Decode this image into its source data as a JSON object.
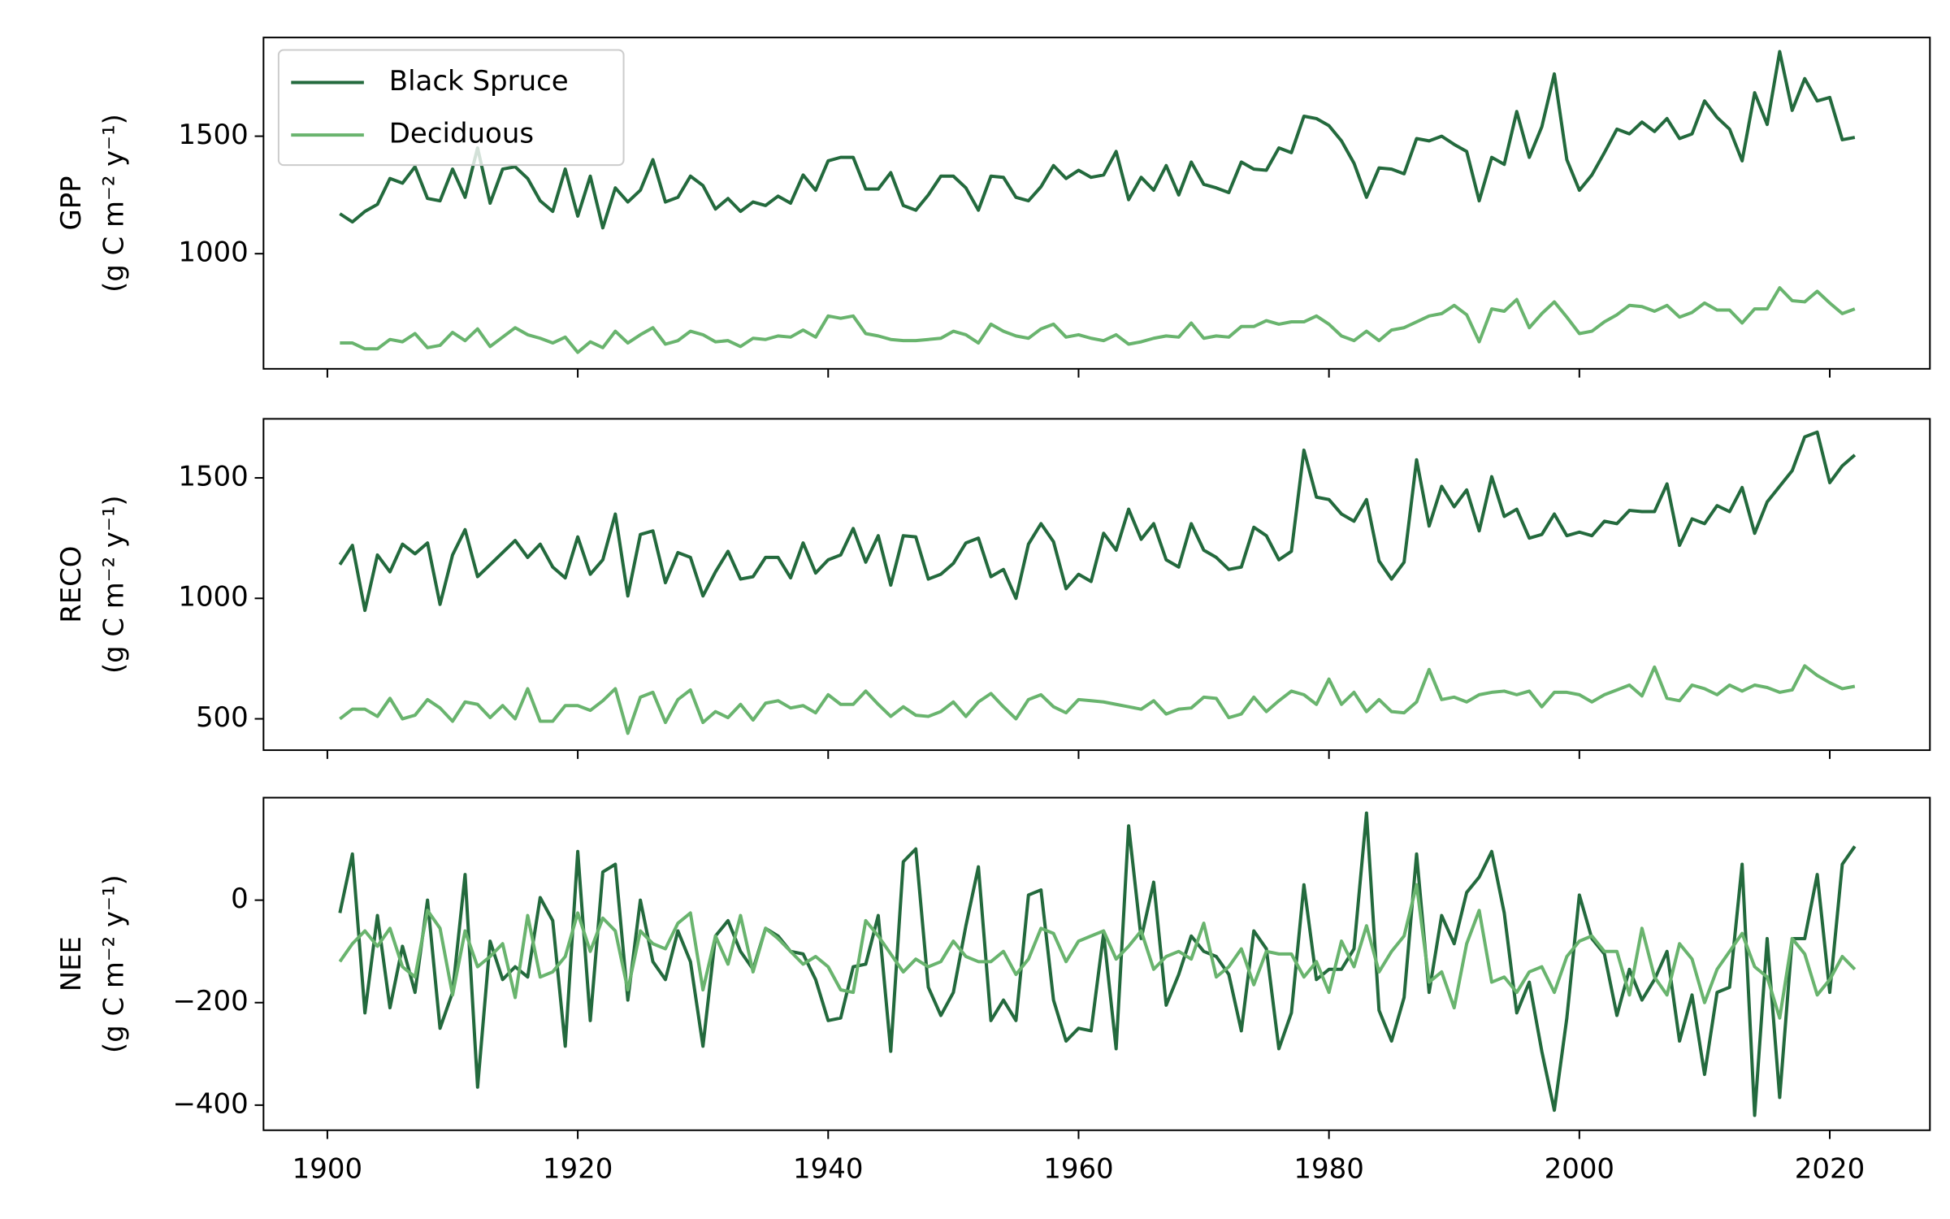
{
  "chart_data": [
    {
      "type": "line",
      "ylabel": [
        "GPP",
        "(g C m⁻² y⁻¹)"
      ],
      "legend": "upper left",
      "xlim": [
        1894.9,
        2028.0
      ],
      "ylim": [
        510,
        1920
      ],
      "yticks": [
        1000,
        1500
      ],
      "x": [
        1901,
        1902,
        1903,
        1904,
        1905,
        1906,
        1907,
        1908,
        1909,
        1910,
        1911,
        1912,
        1913,
        1914,
        1915,
        1916,
        1917,
        1918,
        1919,
        1920,
        1921,
        1922,
        1923,
        1924,
        1925,
        1926,
        1927,
        1928,
        1929,
        1930,
        1931,
        1932,
        1933,
        1934,
        1935,
        1936,
        1937,
        1938,
        1939,
        1940,
        1941,
        1942,
        1943,
        1944,
        1945,
        1946,
        1947,
        1948,
        1949,
        1950,
        1951,
        1952,
        1953,
        1954,
        1955,
        1956,
        1957,
        1958,
        1959,
        1960,
        1961,
        1962,
        1963,
        1964,
        1965,
        1966,
        1967,
        1968,
        1969,
        1970,
        1971,
        1972,
        1973,
        1974,
        1975,
        1976,
        1977,
        1978,
        1979,
        1980,
        1981,
        1982,
        1983,
        1984,
        1985,
        1986,
        1987,
        1988,
        1989,
        1990,
        1991,
        1992,
        1993,
        1994,
        1995,
        1996,
        1997,
        1998,
        1999,
        2000,
        2001,
        2002,
        2003,
        2004,
        2005,
        2006,
        2007,
        2008,
        2009,
        2010,
        2011,
        2012,
        2013,
        2014,
        2015,
        2016,
        2017,
        2018,
        2019,
        2020,
        2021,
        2022
      ],
      "series": [
        {
          "name": "Black Spruce",
          "color": "#236a3d",
          "values": [
            1170,
            1135,
            1180,
            1210,
            1320,
            1300,
            1370,
            1235,
            1225,
            1360,
            1240,
            1450,
            1215,
            1360,
            1370,
            1320,
            1225,
            1180,
            1360,
            1160,
            1330,
            1110,
            1280,
            1220,
            1270,
            1400,
            1220,
            1240,
            1330,
            1290,
            1190,
            1235,
            1180,
            1220,
            1205,
            1245,
            1215,
            1335,
            1270,
            1395,
            1410,
            1410,
            1275,
            1275,
            1345,
            1205,
            1185,
            1250,
            1330,
            1330,
            1280,
            1185,
            1330,
            1325,
            1240,
            1225,
            1285,
            1375,
            1320,
            1355,
            1325,
            1335,
            1435,
            1230,
            1325,
            1270,
            1375,
            1250,
            1390,
            1295,
            1280,
            1260,
            1390,
            1360,
            1355,
            1450,
            1430,
            1585,
            1575,
            1545,
            1480,
            1385,
            1240,
            1365,
            1360,
            1340,
            1490,
            1480,
            1500,
            1465,
            1435,
            1225,
            1410,
            1380,
            1605,
            1410,
            1540,
            1765,
            1400,
            1270,
            1335,
            1430,
            1530,
            1510,
            1560,
            1520,
            1575,
            1490,
            1510,
            1650,
            1580,
            1530,
            1395,
            1685,
            1550,
            1860,
            1610,
            1745,
            1650,
            1665,
            1485,
            1495
          ]
        },
        {
          "name": "Deciduous",
          "color": "#69b46e",
          "values": [
            620,
            620,
            595,
            595,
            635,
            625,
            660,
            600,
            610,
            665,
            630,
            680,
            605,
            645,
            685,
            655,
            640,
            620,
            645,
            580,
            625,
            600,
            670,
            620,
            655,
            685,
            615,
            630,
            670,
            655,
            625,
            630,
            605,
            640,
            635,
            650,
            645,
            675,
            645,
            735,
            725,
            735,
            660,
            650,
            635,
            630,
            630,
            635,
            640,
            670,
            655,
            620,
            700,
            670,
            650,
            640,
            680,
            700,
            645,
            655,
            640,
            630,
            655,
            615,
            625,
            640,
            650,
            645,
            705,
            640,
            650,
            645,
            690,
            690,
            715,
            700,
            710,
            710,
            735,
            700,
            650,
            630,
            670,
            630,
            675,
            685,
            710,
            735,
            745,
            780,
            740,
            625,
            765,
            755,
            805,
            685,
            745,
            795,
            730,
            660,
            670,
            710,
            740,
            780,
            775,
            755,
            780,
            730,
            750,
            790,
            760,
            760,
            705,
            765,
            765,
            855,
            800,
            795,
            840,
            790,
            745,
            765
          ]
        }
      ]
    },
    {
      "type": "line",
      "ylabel": [
        "RECO",
        "(g C m⁻² y⁻¹)"
      ],
      "xlim": [
        1894.9,
        2028.0
      ],
      "ylim": [
        370,
        1745
      ],
      "yticks": [
        500,
        1000,
        1500
      ],
      "x": [
        1901,
        1902,
        1903,
        1904,
        1905,
        1906,
        1907,
        1908,
        1909,
        1910,
        1911,
        1912,
        1913,
        1914,
        1915,
        1916,
        1917,
        1918,
        1919,
        1920,
        1921,
        1922,
        1923,
        1924,
        1925,
        1926,
        1927,
        1928,
        1929,
        1930,
        1931,
        1932,
        1933,
        1934,
        1935,
        1936,
        1937,
        1938,
        1939,
        1940,
        1941,
        1942,
        1943,
        1944,
        1945,
        1946,
        1947,
        1948,
        1949,
        1950,
        1951,
        1952,
        1953,
        1954,
        1955,
        1956,
        1957,
        1958,
        1959,
        1960,
        1961,
        1962,
        1963,
        1964,
        1965,
        1966,
        1967,
        1968,
        1969,
        1970,
        1971,
        1972,
        1973,
        1974,
        1975,
        1976,
        1977,
        1978,
        1979,
        1980,
        1981,
        1982,
        1983,
        1984,
        1985,
        1986,
        1987,
        1988,
        1989,
        1990,
        1991,
        1992,
        1993,
        1994,
        1995,
        1996,
        1997,
        1998,
        1999,
        2000,
        2001,
        2002,
        2003,
        2004,
        2005,
        2006,
        2007,
        2008,
        2009,
        2010,
        2011,
        2012,
        2013,
        2014,
        2015,
        2016,
        2017,
        2018,
        2019,
        2020,
        2021,
        2022
      ],
      "series": [
        {
          "name": "Black Spruce",
          "color": "#236a3d",
          "values": [
            1140,
            1220,
            950,
            1180,
            1110,
            1225,
            1185,
            1230,
            975,
            1180,
            1285,
            1090,
            1140,
            1190,
            1240,
            1170,
            1225,
            1130,
            1085,
            1255,
            1100,
            1160,
            1350,
            1010,
            1265,
            1280,
            1065,
            1190,
            1170,
            1010,
            1110,
            1195,
            1080,
            1090,
            1170,
            1170,
            1085,
            1230,
            1105,
            1160,
            1180,
            1290,
            1150,
            1260,
            1055,
            1260,
            1255,
            1080,
            1100,
            1145,
            1230,
            1250,
            1090,
            1120,
            1000,
            1225,
            1310,
            1235,
            1040,
            1100,
            1070,
            1270,
            1200,
            1370,
            1245,
            1310,
            1160,
            1130,
            1310,
            1200,
            1170,
            1120,
            1130,
            1295,
            1260,
            1160,
            1195,
            1615,
            1420,
            1410,
            1350,
            1320,
            1410,
            1155,
            1080,
            1150,
            1575,
            1300,
            1465,
            1380,
            1450,
            1280,
            1505,
            1340,
            1370,
            1250,
            1265,
            1350,
            1260,
            1275,
            1260,
            1320,
            1310,
            1365,
            1360,
            1360,
            1475,
            1220,
            1330,
            1310,
            1385,
            1360,
            1460,
            1270,
            1400,
            1465,
            1530,
            1670,
            1690,
            1480,
            1550,
            1595
          ]
        },
        {
          "name": "Deciduous",
          "color": "#69b46e",
          "values": [
            500,
            540,
            540,
            510,
            585,
            500,
            515,
            580,
            545,
            490,
            570,
            560,
            505,
            555,
            500,
            625,
            490,
            490,
            555,
            555,
            535,
            575,
            625,
            440,
            590,
            610,
            485,
            580,
            620,
            485,
            530,
            505,
            560,
            495,
            565,
            575,
            545,
            555,
            525,
            600,
            560,
            560,
            615,
            560,
            510,
            550,
            515,
            510,
            530,
            570,
            510,
            570,
            605,
            550,
            500,
            580,
            600,
            550,
            525,
            580,
            575,
            570,
            560,
            550,
            540,
            575,
            520,
            540,
            545,
            590,
            585,
            505,
            520,
            590,
            530,
            575,
            615,
            600,
            560,
            665,
            560,
            610,
            530,
            580,
            530,
            525,
            570,
            705,
            580,
            590,
            570,
            600,
            610,
            615,
            600,
            615,
            550,
            610,
            610,
            600,
            570,
            600,
            620,
            640,
            595,
            715,
            585,
            575,
            640,
            625,
            600,
            640,
            615,
            640,
            630,
            610,
            620,
            720,
            680,
            650,
            625,
            635
          ]
        }
      ]
    },
    {
      "type": "line",
      "ylabel": [
        "NEE",
        "(g C m⁻² y⁻¹)"
      ],
      "xlim": [
        1894.9,
        2028.0
      ],
      "ylim": [
        -449,
        200
      ],
      "yticks": [
        {
          "value": -400,
          "label": "−400"
        },
        {
          "value": -200,
          "label": "−200"
        },
        0
      ],
      "xticks": [
        1900,
        1920,
        1940,
        1960,
        1980,
        2000,
        2020
      ],
      "x": [
        1901,
        1902,
        1903,
        1904,
        1905,
        1906,
        1907,
        1908,
        1909,
        1910,
        1911,
        1912,
        1913,
        1914,
        1915,
        1916,
        1917,
        1918,
        1919,
        1920,
        1921,
        1922,
        1923,
        1924,
        1925,
        1926,
        1927,
        1928,
        1929,
        1930,
        1931,
        1932,
        1933,
        1934,
        1935,
        1936,
        1937,
        1938,
        1939,
        1940,
        1941,
        1942,
        1943,
        1944,
        1945,
        1946,
        1947,
        1948,
        1949,
        1950,
        1951,
        1952,
        1953,
        1954,
        1955,
        1956,
        1957,
        1958,
        1959,
        1960,
        1961,
        1962,
        1963,
        1964,
        1965,
        1966,
        1967,
        1968,
        1969,
        1970,
        1971,
        1972,
        1973,
        1974,
        1975,
        1976,
        1977,
        1978,
        1979,
        1980,
        1981,
        1982,
        1983,
        1984,
        1985,
        1986,
        1987,
        1988,
        1989,
        1990,
        1991,
        1992,
        1993,
        1994,
        1995,
        1996,
        1997,
        1998,
        1999,
        2000,
        2001,
        2002,
        2003,
        2004,
        2005,
        2006,
        2007,
        2008,
        2009,
        2010,
        2011,
        2012,
        2013,
        2014,
        2015,
        2016,
        2017,
        2018,
        2019,
        2020,
        2021,
        2022
      ],
      "series": [
        {
          "name": "Black Spruce",
          "color": "#236a3d",
          "values": [
            -25,
            90,
            -220,
            -30,
            -210,
            -90,
            -180,
            0,
            -250,
            -180,
            50,
            -365,
            -80,
            -155,
            -130,
            -150,
            5,
            -40,
            -285,
            95,
            -235,
            55,
            70,
            -195,
            0,
            -120,
            -155,
            -60,
            -120,
            -285,
            -70,
            -40,
            -100,
            -135,
            -55,
            -70,
            -100,
            -105,
            -155,
            -235,
            -230,
            -130,
            -125,
            -30,
            -295,
            75,
            100,
            -170,
            -225,
            -180,
            -50,
            65,
            -235,
            -195,
            -235,
            10,
            20,
            -195,
            -275,
            -250,
            -255,
            -65,
            -290,
            145,
            -75,
            35,
            -205,
            -145,
            -70,
            -100,
            -110,
            -145,
            -255,
            -60,
            -95,
            -290,
            -220,
            30,
            -155,
            -135,
            -135,
            -95,
            170,
            -215,
            -275,
            -190,
            90,
            -180,
            -30,
            -85,
            15,
            45,
            95,
            -25,
            -220,
            -160,
            -295,
            -410,
            -230,
            10,
            -75,
            -105,
            -225,
            -135,
            -195,
            -155,
            -100,
            -275,
            -185,
            -340,
            -180,
            -170,
            70,
            -420,
            -75,
            -385,
            -75,
            -75,
            50,
            -180,
            70,
            105
          ]
        },
        {
          "name": "Deciduous",
          "color": "#69b46e",
          "values": [
            -120,
            -85,
            -60,
            -90,
            -55,
            -130,
            -150,
            -20,
            -55,
            -185,
            -60,
            -130,
            -110,
            -85,
            -190,
            -30,
            -150,
            -140,
            -110,
            -25,
            -100,
            -35,
            -60,
            -175,
            -60,
            -85,
            -95,
            -45,
            -25,
            -175,
            -70,
            -125,
            -30,
            -140,
            -55,
            -75,
            -100,
            -125,
            -110,
            -130,
            -175,
            -180,
            -40,
            -70,
            -105,
            -140,
            -115,
            -130,
            -120,
            -80,
            -110,
            -120,
            -120,
            -100,
            -145,
            -115,
            -55,
            -65,
            -120,
            -80,
            -70,
            -60,
            -115,
            -90,
            -60,
            -135,
            -110,
            -100,
            -115,
            -45,
            -150,
            -130,
            -95,
            -165,
            -100,
            -105,
            -105,
            -150,
            -120,
            -180,
            -80,
            -130,
            -50,
            -140,
            -100,
            -70,
            30,
            -160,
            -140,
            -210,
            -85,
            -20,
            -160,
            -150,
            -180,
            -140,
            -130,
            -180,
            -110,
            -80,
            -70,
            -100,
            -100,
            -185,
            -55,
            -150,
            -185,
            -85,
            -115,
            -200,
            -135,
            -100,
            -65,
            -130,
            -150,
            -230,
            -75,
            -105,
            -185,
            -155,
            -110,
            -135
          ]
        }
      ]
    }
  ]
}
